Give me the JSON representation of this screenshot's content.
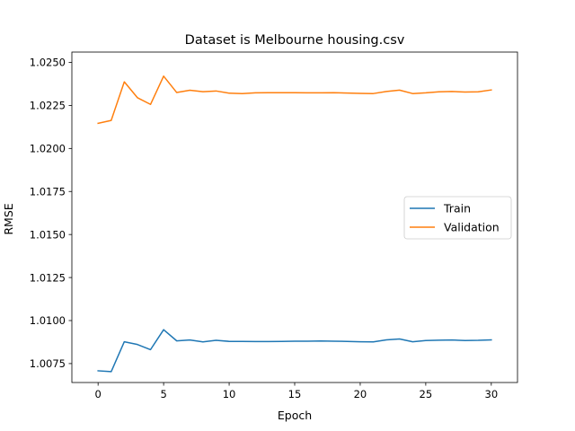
{
  "chart_data": {
    "type": "line",
    "title": "Dataset is Melbourne housing.csv",
    "xlabel": "Epoch",
    "ylabel": "RMSE",
    "xlim": [
      -2,
      32
    ],
    "ylim": [
      1.0064,
      1.0256
    ],
    "xticks": [
      0,
      5,
      10,
      15,
      20,
      25,
      30
    ],
    "yticks": [
      1.0075,
      1.01,
      1.0125,
      1.015,
      1.0175,
      1.02,
      1.0225,
      1.025
    ],
    "ytick_labels": [
      "1.0075",
      "1.0100",
      "1.0125",
      "1.0150",
      "1.0175",
      "1.0200",
      "1.0225",
      "1.0250"
    ],
    "legend_position": "center-right",
    "grid": false,
    "x": [
      0,
      1,
      2,
      3,
      4,
      5,
      6,
      7,
      8,
      9,
      10,
      11,
      12,
      13,
      14,
      15,
      16,
      17,
      18,
      19,
      20,
      21,
      22,
      23,
      24,
      25,
      26,
      27,
      28,
      29,
      30
    ],
    "series": [
      {
        "name": "Train",
        "color": "#1f77b4",
        "values": [
          1.00708,
          1.00703,
          1.00877,
          1.00861,
          1.00831,
          1.00947,
          1.00882,
          1.00887,
          1.00876,
          1.00885,
          1.00879,
          1.00879,
          1.00878,
          1.00878,
          1.00879,
          1.0088,
          1.0088,
          1.00881,
          1.0088,
          1.00879,
          1.00877,
          1.00876,
          1.00888,
          1.00893,
          1.00877,
          1.00884,
          1.00886,
          1.00887,
          1.00884,
          1.00885,
          1.00888
        ]
      },
      {
        "name": "Validation",
        "color": "#ff7f0e",
        "values": [
          1.02146,
          1.02163,
          1.02387,
          1.02295,
          1.02256,
          1.0242,
          1.02325,
          1.02338,
          1.0233,
          1.02334,
          1.02321,
          1.02319,
          1.02323,
          1.02324,
          1.02324,
          1.02324,
          1.02323,
          1.02323,
          1.02324,
          1.02322,
          1.0232,
          1.02319,
          1.02331,
          1.02339,
          1.02319,
          1.02323,
          1.02329,
          1.02331,
          1.02328,
          1.02329,
          1.0234
        ]
      }
    ]
  }
}
